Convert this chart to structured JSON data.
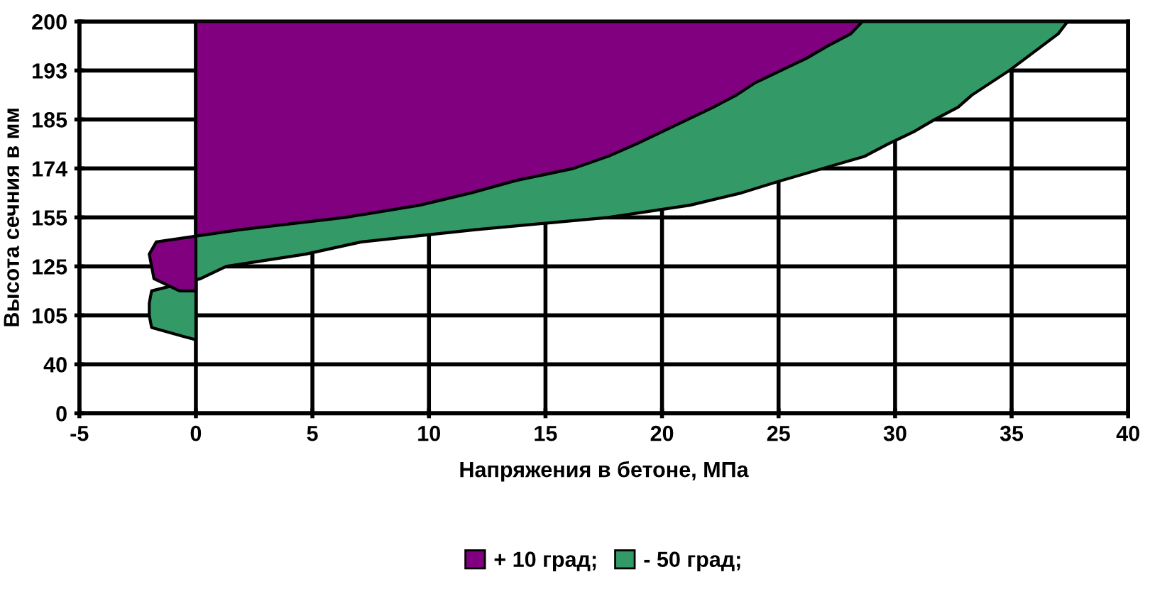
{
  "chart_data": {
    "type": "area",
    "orientation": "horizontal",
    "xlabel": "Напряжения в бетоне, МПа",
    "ylabel": "Высота сечния в мм",
    "xlim": [
      -5,
      40
    ],
    "xticks": [
      -5,
      0,
      5,
      10,
      15,
      20,
      25,
      30,
      35,
      40
    ],
    "categories": [
      "200",
      null,
      null,
      null,
      "193",
      null,
      null,
      null,
      "185",
      null,
      null,
      null,
      "174",
      null,
      null,
      null,
      "155",
      null,
      null,
      null,
      "125",
      null,
      null,
      null,
      "105",
      null,
      null,
      null,
      "40",
      null,
      null,
      null,
      "0"
    ],
    "grid": true,
    "legend": "bottom",
    "series": [
      {
        "name": "- 50 град;",
        "color": "#339966",
        "values": [
          37.4,
          37.0,
          36.3,
          35.6,
          34.9,
          34.1,
          33.3,
          32.7,
          31.7,
          30.8,
          29.7,
          28.7,
          26.9,
          25.1,
          23.4,
          21.2,
          17.7,
          12.0,
          7.1,
          4.7,
          1.3,
          0.2,
          -1.9,
          -2.0,
          -2.0,
          -1.9,
          0,
          null,
          null,
          null,
          null,
          null,
          null
        ]
      },
      {
        "name": "+ 10 град;",
        "color": "#800080",
        "values": [
          28.6,
          28.1,
          27.1,
          26.2,
          25.1,
          24.0,
          23.2,
          22.2,
          21.1,
          20.0,
          18.9,
          17.7,
          16.2,
          13.7,
          11.8,
          9.6,
          6.4,
          1.9,
          -1.7,
          -2.0,
          -1.9,
          -1.8,
          -0.7,
          null,
          null,
          null,
          null,
          null,
          null,
          null,
          null,
          null,
          null
        ]
      }
    ]
  }
}
